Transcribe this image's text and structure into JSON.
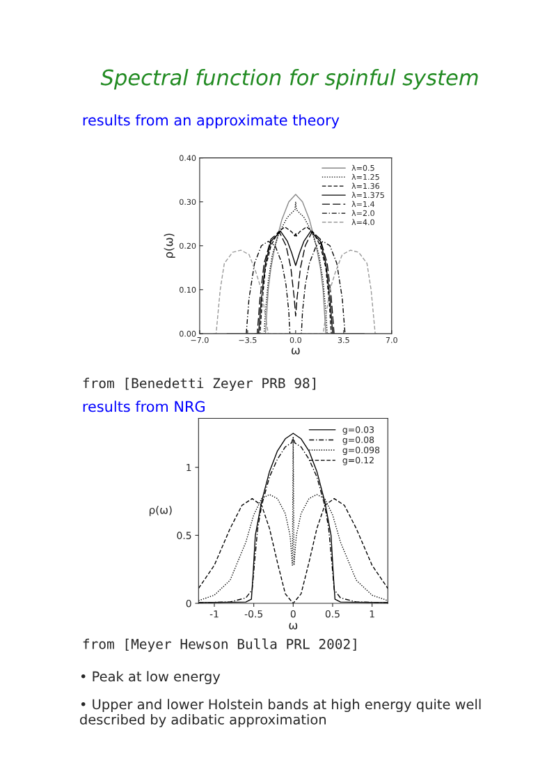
{
  "chart_data": [
    {
      "type": "line",
      "title": "Spectral function for spinful system",
      "subtitle": "results from an approximate theory",
      "xlabel": "ω",
      "ylabel": "ρ(ω)",
      "xlim": [
        -7,
        7
      ],
      "xticks": [
        {
          "value": -7,
          "label": "−7.0"
        },
        {
          "value": -3.5,
          "label": "−3.5"
        },
        {
          "value": 0,
          "label": "0.0"
        },
        {
          "value": 3.5,
          "label": "3.5"
        },
        {
          "value": 7,
          "label": "7.0"
        }
      ],
      "ylim": [
        0,
        0.4
      ],
      "yticks": [
        {
          "value": 0,
          "label": "0.00"
        },
        {
          "value": 0.1,
          "label": "0.10"
        },
        {
          "value": 0.2,
          "label": "0.20"
        },
        {
          "value": 0.3,
          "label": "0.30"
        },
        {
          "value": 0.4,
          "label": "0.40"
        }
      ],
      "grid": false,
      "legend": "top right",
      "marker": "none",
      "series": [
        {
          "name": "λ=0.5",
          "color": "#888888",
          "line_style": "solid",
          "x": [
            -2.5,
            -2.2,
            -2.1,
            -2.0,
            -1.8,
            -1.5,
            -1.0,
            -0.5,
            0,
            0.5,
            1.0,
            1.5,
            1.8,
            2.0,
            2.1,
            2.2,
            2.5
          ],
          "values": [
            0,
            0,
            0.05,
            0.1,
            0.15,
            0.2,
            0.26,
            0.3,
            0.317,
            0.3,
            0.26,
            0.2,
            0.15,
            0.1,
            0.05,
            0,
            0
          ]
        },
        {
          "name": "λ=1.25",
          "color": "#000000",
          "line_style": "dotted",
          "x": [
            -2.5,
            -2.3,
            -2.2,
            -2.0,
            -1.7,
            -1.2,
            -0.6,
            -0.05,
            0,
            0.05,
            0.6,
            1.2,
            1.7,
            2.0,
            2.2,
            2.3,
            2.5
          ],
          "values": [
            0,
            0,
            0.05,
            0.12,
            0.18,
            0.23,
            0.265,
            0.282,
            0.3,
            0.282,
            0.265,
            0.23,
            0.18,
            0.12,
            0.05,
            0,
            0
          ]
        },
        {
          "name": "λ=1.36",
          "color": "#000000",
          "line_style": "dashed",
          "x": [
            -2.8,
            -2.6,
            -2.45,
            -2.2,
            -1.8,
            -1.3,
            -0.8,
            -0.3,
            -0.05,
            0,
            0.05,
            0.3,
            0.8,
            1.3,
            1.8,
            2.2,
            2.45,
            2.6,
            2.8
          ],
          "values": [
            0,
            0,
            0.07,
            0.15,
            0.2,
            0.23,
            0.243,
            0.232,
            0.222,
            0.23,
            0.222,
            0.232,
            0.243,
            0.23,
            0.2,
            0.15,
            0.07,
            0,
            0
          ]
        },
        {
          "name": "λ=1.375",
          "color": "#000000",
          "line_style": "solid",
          "x": [
            -5,
            -2.7,
            -2.5,
            -2.2,
            -1.8,
            -1.1,
            -0.6,
            -0.3,
            -0.05,
            0,
            0.05,
            0.3,
            0.6,
            1.1,
            1.8,
            2.2,
            2.5,
            2.7,
            5
          ],
          "values": [
            0,
            0,
            0.08,
            0.16,
            0.21,
            0.233,
            0.21,
            0.185,
            0.16,
            0.155,
            0.16,
            0.185,
            0.21,
            0.233,
            0.21,
            0.16,
            0.08,
            0,
            0
          ]
        },
        {
          "name": "λ=1.4",
          "color": "#000000",
          "line_style": "longdash",
          "x": [
            -3.0,
            -2.8,
            -2.6,
            -2.3,
            -1.8,
            -1.2,
            -0.7,
            -0.35,
            -0.1,
            0,
            0.1,
            0.35,
            0.7,
            1.2,
            1.8,
            2.3,
            2.6,
            2.8,
            3.0
          ],
          "values": [
            0,
            0,
            0.08,
            0.16,
            0.215,
            0.232,
            0.2,
            0.15,
            0.08,
            0.04,
            0.08,
            0.15,
            0.2,
            0.232,
            0.215,
            0.16,
            0.08,
            0,
            0
          ]
        },
        {
          "name": "λ=2.0",
          "color": "#000000",
          "line_style": "dashdot",
          "x": [
            -3.6,
            -3.4,
            -3.0,
            -2.5,
            -2.0,
            -1.5,
            -1.0,
            -0.7,
            -0.5,
            -0.42,
            0,
            0.42,
            0.5,
            0.7,
            1.0,
            1.5,
            2.0,
            2.5,
            3.0,
            3.4,
            3.6
          ],
          "values": [
            0,
            0.08,
            0.16,
            0.2,
            0.21,
            0.2,
            0.16,
            0.11,
            0.05,
            0,
            0,
            0,
            0.05,
            0.11,
            0.16,
            0.2,
            0.21,
            0.2,
            0.16,
            0.08,
            0
          ]
        },
        {
          "name": "λ=4.0",
          "color": "#999999",
          "line_style": "dashed",
          "x": [
            -6.0,
            -5.8,
            -5.5,
            -5.2,
            -4.6,
            -4.0,
            -3.4,
            -2.9,
            -2.5,
            -2.0,
            0,
            2.0,
            2.5,
            2.9,
            3.4,
            4.0,
            4.6,
            5.2,
            5.5,
            5.8,
            6.0
          ],
          "values": [
            0,
            0,
            0.1,
            0.16,
            0.185,
            0.19,
            0.18,
            0.14,
            0.1,
            0,
            0,
            0,
            0.1,
            0.14,
            0.18,
            0.19,
            0.185,
            0.16,
            0.1,
            0,
            0
          ]
        }
      ],
      "annotations": [
        "from [Benedetti Zeyer PRB 98]"
      ]
    },
    {
      "type": "line",
      "subtitle": "results from NRG",
      "xlabel": "ω",
      "ylabel": "ρ(ω)",
      "xlim": [
        -1.2,
        1.2
      ],
      "xticks": [
        -1,
        -0.5,
        0,
        0.5,
        1
      ],
      "ylim": [
        0,
        1.36
      ],
      "yticks": [
        0,
        0.5,
        1
      ],
      "grid": false,
      "legend": "top right",
      "marker": "none",
      "series": [
        {
          "name": "g=0.03",
          "color": "#000000",
          "line_style": "solid",
          "x": [
            -1.2,
            -0.6,
            -0.53,
            -0.51,
            -0.48,
            -0.4,
            -0.3,
            -0.2,
            -0.1,
            0,
            0.1,
            0.2,
            0.3,
            0.4,
            0.48,
            0.51,
            0.53,
            0.6,
            1.2
          ],
          "values": [
            0.005,
            0.01,
            0.03,
            0.2,
            0.5,
            0.75,
            0.97,
            1.12,
            1.21,
            1.25,
            1.21,
            1.12,
            0.97,
            0.75,
            0.5,
            0.2,
            0.03,
            0.01,
            0.005
          ]
        },
        {
          "name": "g=0.08",
          "color": "#000000",
          "line_style": "dashdot",
          "x": [
            -1.2,
            -0.8,
            -0.6,
            -0.52,
            -0.49,
            -0.45,
            -0.4,
            -0.3,
            -0.2,
            -0.1,
            -0.02,
            0,
            0.02,
            0.1,
            0.2,
            0.3,
            0.4,
            0.45,
            0.49,
            0.52,
            0.6,
            0.8,
            1.2
          ],
          "values": [
            0.005,
            0.01,
            0.04,
            0.1,
            0.3,
            0.55,
            0.72,
            0.93,
            1.06,
            1.15,
            1.18,
            1.22,
            1.18,
            1.15,
            1.06,
            0.93,
            0.72,
            0.55,
            0.3,
            0.1,
            0.04,
            0.01,
            0.005
          ]
        },
        {
          "name": "g=0.098",
          "color": "#000000",
          "line_style": "dotted",
          "x": [
            -1.2,
            -1.0,
            -0.8,
            -0.6,
            -0.5,
            -0.4,
            -0.3,
            -0.2,
            -0.1,
            -0.04,
            -0.01,
            0,
            0.01,
            0.04,
            0.1,
            0.2,
            0.3,
            0.4,
            0.5,
            0.6,
            0.8,
            1.0,
            1.2
          ],
          "values": [
            0.02,
            0.06,
            0.17,
            0.45,
            0.65,
            0.77,
            0.8,
            0.77,
            0.66,
            0.5,
            0.28,
            1.22,
            0.28,
            0.5,
            0.66,
            0.77,
            0.8,
            0.77,
            0.65,
            0.45,
            0.17,
            0.06,
            0.02
          ]
        },
        {
          "name": "g=0.12",
          "color": "#000000",
          "line_style": "dashed",
          "x": [
            -1.2,
            -1.0,
            -0.8,
            -0.65,
            -0.52,
            -0.4,
            -0.3,
            -0.2,
            -0.1,
            0,
            0.1,
            0.2,
            0.3,
            0.4,
            0.52,
            0.65,
            0.8,
            1.0,
            1.2
          ],
          "values": [
            0.11,
            0.28,
            0.55,
            0.72,
            0.77,
            0.72,
            0.55,
            0.3,
            0.07,
            0,
            0.07,
            0.3,
            0.55,
            0.72,
            0.77,
            0.72,
            0.55,
            0.28,
            0.11
          ]
        }
      ],
      "annotations": [
        "from [Meyer Hewson Bulla PRL 2002]",
        "• Peak at low energy",
        "• Upper and lower Holstein bands at high energy quite well described by adibatic approximation"
      ]
    }
  ]
}
